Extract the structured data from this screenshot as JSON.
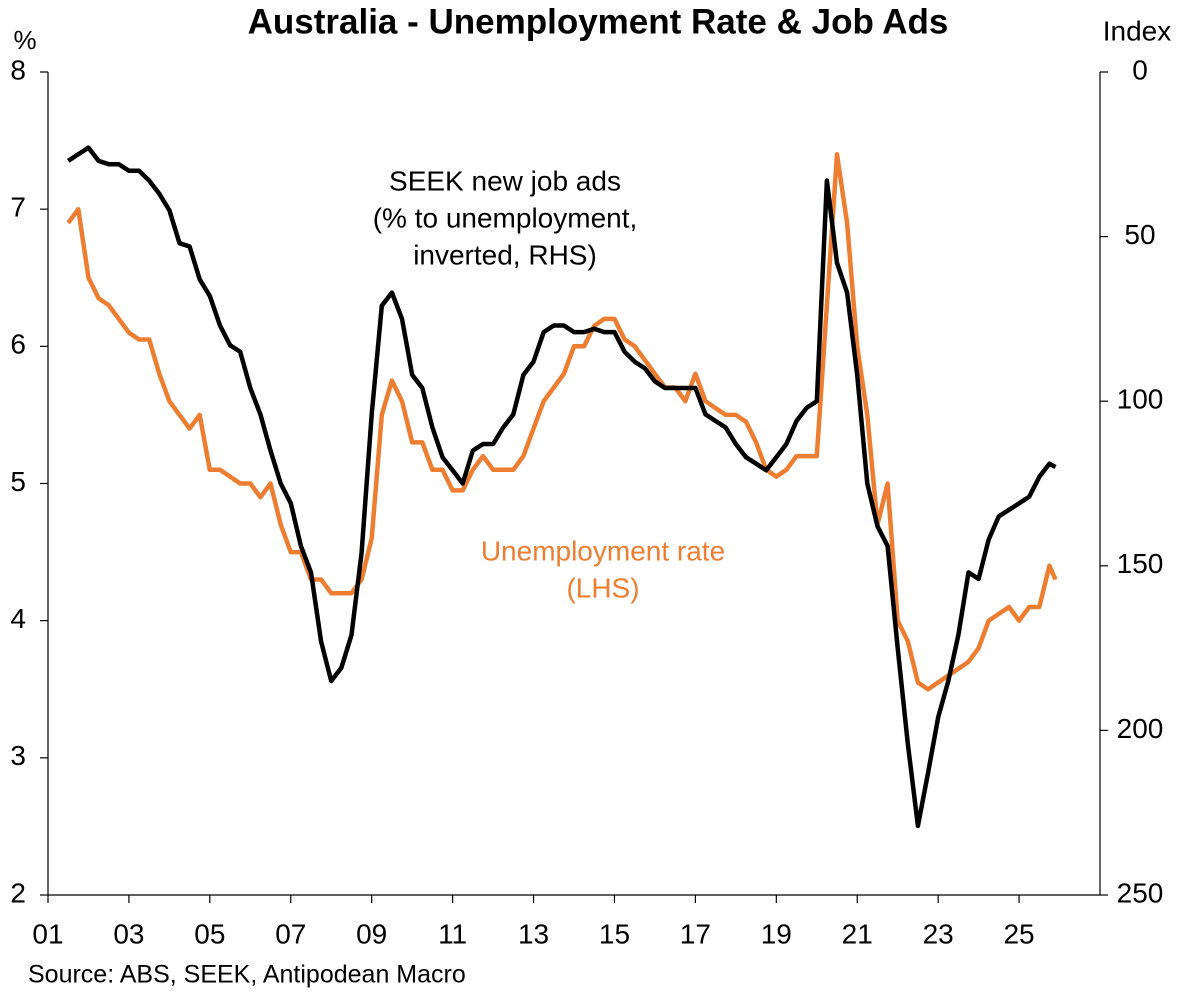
{
  "chart_data": {
    "type": "line",
    "title": "Australia - Unemployment Rate & Job Ads",
    "ylabel": "%",
    "y2label": "Index",
    "source": "Source: ABS, SEEK, Antipodean Macro",
    "x": [
      2001.5,
      2001.75,
      2002,
      2002.25,
      2002.5,
      2002.75,
      2003,
      2003.25,
      2003.5,
      2003.75,
      2004,
      2004.25,
      2004.5,
      2004.75,
      2005,
      2005.25,
      2005.5,
      2005.75,
      2006,
      2006.25,
      2006.5,
      2006.75,
      2007,
      2007.25,
      2007.5,
      2007.75,
      2008,
      2008.25,
      2008.5,
      2008.75,
      2009,
      2009.25,
      2009.5,
      2009.75,
      2010,
      2010.25,
      2010.5,
      2010.75,
      2011,
      2011.25,
      2011.5,
      2011.75,
      2012,
      2012.25,
      2012.5,
      2012.75,
      2013,
      2013.25,
      2013.5,
      2013.75,
      2014,
      2014.25,
      2014.5,
      2014.75,
      2015,
      2015.25,
      2015.5,
      2015.75,
      2016,
      2016.25,
      2016.5,
      2016.75,
      2017,
      2017.25,
      2017.5,
      2017.75,
      2018,
      2018.25,
      2018.5,
      2018.75,
      2019,
      2019.25,
      2019.5,
      2019.75,
      2020,
      2020.25,
      2020.5,
      2020.75,
      2021,
      2021.25,
      2021.5,
      2021.75,
      2022,
      2022.25,
      2022.5,
      2022.75,
      2023,
      2023.25,
      2023.5,
      2023.75,
      2024,
      2024.25,
      2024.5,
      2024.75,
      2025,
      2025.25,
      2025.5,
      2025.75,
      2025.9
    ],
    "series": [
      {
        "name": "SEEK new job ads (% to unemployment, inverted, RHS)",
        "color": "#000000",
        "axis": "y2",
        "values": [
          27,
          25,
          23,
          27,
          28,
          28,
          30,
          30,
          33,
          37,
          42,
          52,
          53,
          63,
          68,
          77,
          83,
          85,
          96,
          104,
          115,
          125,
          131,
          144,
          152,
          173,
          185,
          181,
          171,
          146,
          104,
          71,
          67,
          75,
          92,
          96,
          108,
          117,
          121,
          125,
          115,
          113,
          113,
          108,
          104,
          92,
          88,
          79,
          77,
          77,
          79,
          79,
          78,
          79,
          79,
          85,
          88,
          90,
          94,
          96,
          96,
          96,
          96,
          104,
          106,
          108,
          113,
          117,
          119,
          121,
          117,
          113,
          106,
          102,
          100,
          33,
          58,
          67,
          92,
          125,
          138,
          144,
          175,
          204,
          229,
          213,
          196,
          185,
          171,
          152,
          154,
          142,
          135,
          133,
          131,
          129,
          123,
          119,
          120
        ]
      },
      {
        "name": "Unemployment rate (LHS)",
        "color": "#ED7D31",
        "values": [
          6.9,
          7.0,
          6.5,
          6.35,
          6.3,
          6.2,
          6.1,
          6.05,
          6.05,
          5.8,
          5.6,
          5.5,
          5.4,
          5.5,
          5.1,
          5.1,
          5.05,
          5.0,
          5.0,
          4.9,
          5.0,
          4.7,
          4.5,
          4.5,
          4.3,
          4.3,
          4.2,
          4.2,
          4.2,
          4.3,
          4.6,
          5.5,
          5.75,
          5.6,
          5.3,
          5.3,
          5.1,
          5.1,
          4.95,
          4.95,
          5.1,
          5.2,
          5.1,
          5.1,
          5.1,
          5.2,
          5.4,
          5.6,
          5.7,
          5.8,
          6.0,
          6.0,
          6.15,
          6.2,
          6.2,
          6.05,
          6.0,
          5.9,
          5.8,
          5.7,
          5.7,
          5.6,
          5.8,
          5.6,
          5.55,
          5.5,
          5.5,
          5.45,
          5.3,
          5.1,
          5.05,
          5.1,
          5.2,
          5.2,
          5.2,
          6.3,
          7.4,
          6.9,
          6.0,
          5.5,
          4.7,
          5.0,
          4.0,
          3.85,
          3.55,
          3.5,
          3.55,
          3.6,
          3.65,
          3.7,
          3.8,
          4.0,
          4.05,
          4.1,
          4.0,
          4.1,
          4.1,
          4.4,
          4.3
        ]
      }
    ],
    "annotations": [
      {
        "lines": [
          "SEEK new job ads",
          "(% to unemployment,",
          "inverted, RHS)"
        ],
        "color": "#000000"
      },
      {
        "lines": [
          "Unemployment rate",
          "(LHS)"
        ],
        "color": "#ED7D31"
      }
    ],
    "xlim": [
      2001,
      2027
    ],
    "xticks": [
      {
        "value": 2001,
        "label": "01"
      },
      {
        "value": 2003,
        "label": "03"
      },
      {
        "value": 2005,
        "label": "05"
      },
      {
        "value": 2007,
        "label": "07"
      },
      {
        "value": 2009,
        "label": "09"
      },
      {
        "value": 2011,
        "label": "11"
      },
      {
        "value": 2013,
        "label": "13"
      },
      {
        "value": 2015,
        "label": "15"
      },
      {
        "value": 2017,
        "label": "17"
      },
      {
        "value": 2019,
        "label": "19"
      },
      {
        "value": 2021,
        "label": "21"
      },
      {
        "value": 2023,
        "label": "23"
      },
      {
        "value": 2025,
        "label": "25"
      }
    ],
    "ylim": [
      2,
      8
    ],
    "yticks": [
      2,
      3,
      4,
      5,
      6,
      7,
      8
    ],
    "y2lim": [
      0,
      250
    ],
    "y2ticks": [
      0,
      50,
      100,
      150,
      200,
      250
    ],
    "y2_inverted": true,
    "grid": false
  }
}
